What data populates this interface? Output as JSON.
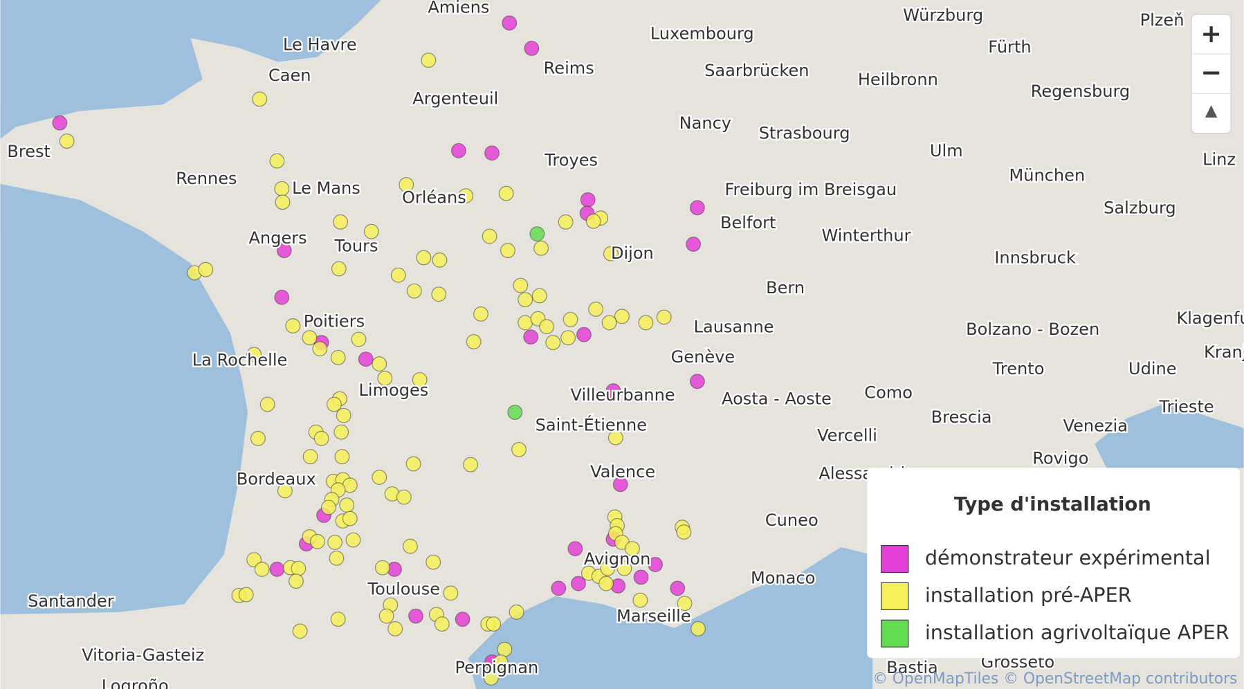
{
  "map": {
    "places": [
      "Amiens",
      "Le Havre",
      "Caen",
      "Reims",
      "Argenteuil",
      "Luxembourg",
      "Saarbrücken",
      "Würzburg",
      "Fürth",
      "Heilbronn",
      "Plzeň",
      "Regensburg",
      "Brest",
      "Rennes",
      "Le Mans",
      "Orléans",
      "Troyes",
      "Nancy",
      "Strasbourg",
      "Ulm",
      "München",
      "Linz",
      "Angers",
      "Tours",
      "Freiburg im Breisgau",
      "Salzburg",
      "Belfort",
      "Dijon",
      "Winterthur",
      "Innsbruck",
      "Bern",
      "Poitiers",
      "Lausanne",
      "Bolzano - Bozen",
      "Klagenfurt",
      "La Rochelle",
      "Genève",
      "Trento",
      "Udine",
      "Kranj",
      "Limoges",
      "Villeurbanne",
      "Aosta - Aoste",
      "Como",
      "Trieste",
      "Brescia",
      "Saint-Étienne",
      "Vercelli",
      "Venezia",
      "Rovigo",
      "Valence",
      "Bordeaux",
      "Alessandria",
      "Cuneo",
      "Avignon",
      "Monaco",
      "Toulouse",
      "Santander",
      "Marseille",
      "Vitoria-Gasteiz",
      "Perpignan",
      "Logroño",
      "Bastia",
      "Grosseto"
    ],
    "legend": {
      "title": "Type d'installation",
      "items": [
        {
          "label": "démonstrateur expérimental",
          "color": "#e43fd6"
        },
        {
          "label": "installation pré-APER",
          "color": "#f6f05a"
        },
        {
          "label": "installation agrivoltaïque APER",
          "color": "#62dd52"
        }
      ]
    },
    "attribution": [
      "© OpenMapTiles",
      "© OpenStreetMap contributors"
    ],
    "zoom": {
      "in": "+",
      "out": "−",
      "north": "▲"
    }
  }
}
